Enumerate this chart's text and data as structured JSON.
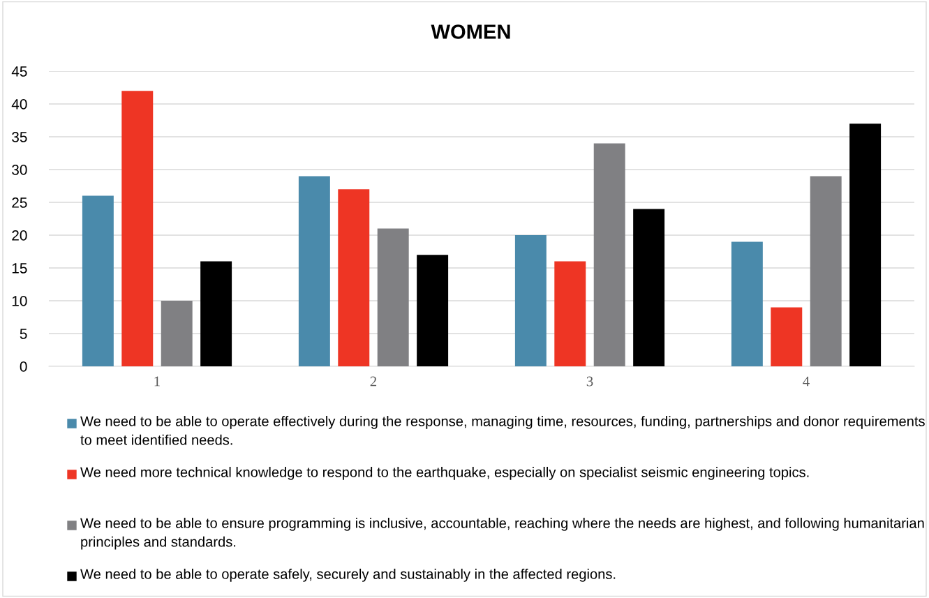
{
  "chart_data": {
    "type": "bar",
    "title": "WOMEN",
    "categories": [
      "1",
      "2",
      "3",
      "4"
    ],
    "series": [
      {
        "name": "We need to be able to operate effectively during the response, managing time, resources, funding, partnerships and donor requirements to meet identified needs.",
        "color": "#4a8aab",
        "values": [
          26,
          29,
          20,
          19
        ]
      },
      {
        "name": "We need more technical knowledge to respond to the earthquake, especially on specialist seismic engineering topics.",
        "color": "#ee3524",
        "values": [
          42,
          27,
          16,
          9
        ]
      },
      {
        "name": "We need to be able to ensure programming is inclusive, accountable, reaching where the needs are highest, and following humanitarian principles and standards.",
        "color": "#808083",
        "values": [
          10,
          21,
          34,
          29
        ]
      },
      {
        "name": "We need to be able to operate safely, securely and sustainably in the affected regions.",
        "color": "#000000",
        "values": [
          16,
          17,
          24,
          37
        ]
      }
    ],
    "ylim": [
      0,
      45
    ],
    "yticks": [
      0,
      5,
      10,
      15,
      20,
      25,
      30,
      35,
      40,
      45
    ],
    "grid": "y",
    "legend": "bottom"
  }
}
